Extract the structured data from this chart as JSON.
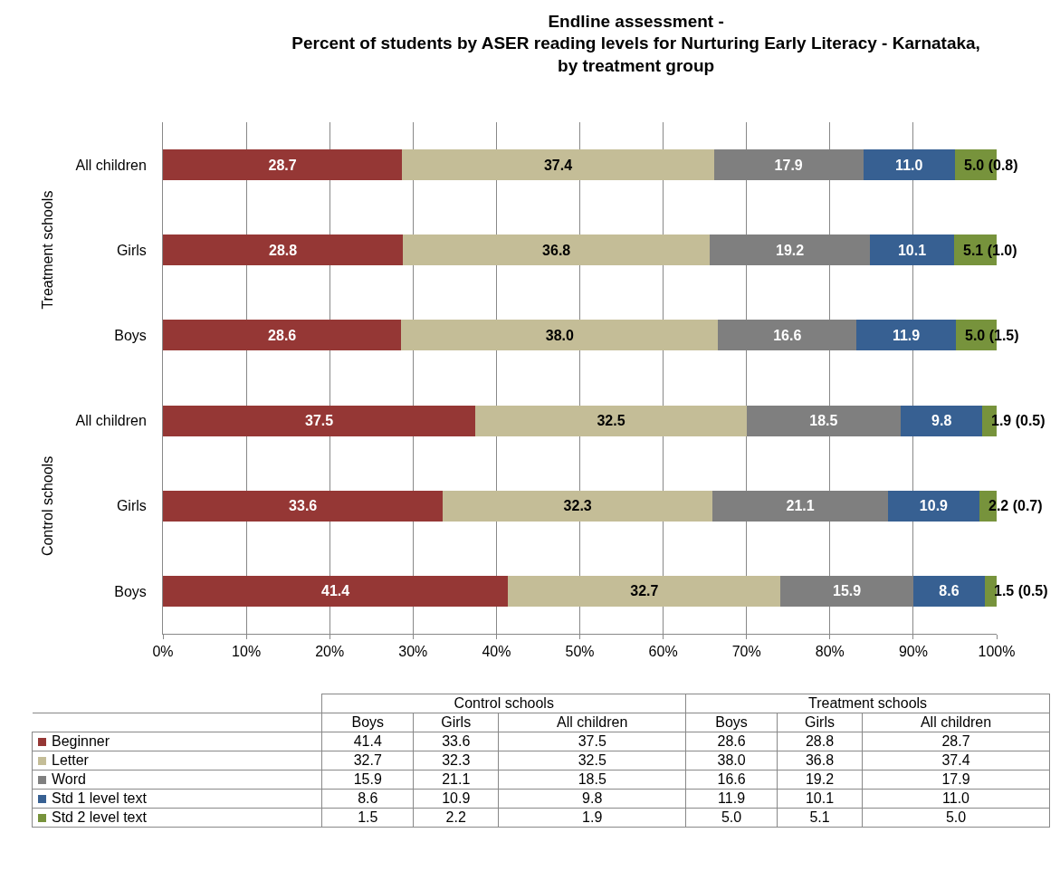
{
  "chart_data": [
    {
      "type": "bar",
      "orientation": "horizontal",
      "stacked": true,
      "title": "Endline assessment -\nPercent of students by ASER reading levels for Nurturing Early Literacy - Karnataka,\nby treatment group",
      "categories": [
        "All children",
        "Girls",
        "Boys",
        "All children",
        "Girls",
        "Boys"
      ],
      "annotations": [
        "Treatment schools",
        "Control schools"
      ],
      "series": [
        {
          "color": "#953735",
          "values": [
            28.7,
            28.8,
            28.6,
            37.5,
            33.6,
            41.4
          ],
          "value_labels": [
            "28.7",
            "28.8",
            "28.6",
            "37.5",
            "33.6",
            "41.4"
          ]
        },
        {
          "color": "#c4bd97",
          "values": [
            37.4,
            36.8,
            38.0,
            32.5,
            32.3,
            32.7
          ],
          "value_labels": [
            "37.4",
            "36.8",
            "38.0",
            "32.5",
            "32.3",
            "32.7"
          ]
        },
        {
          "color": "#7f7f7f",
          "values": [
            17.9,
            19.2,
            16.6,
            18.5,
            21.1,
            15.9
          ],
          "value_labels": [
            "17.9",
            "19.2",
            "16.6",
            "18.5",
            "21.1",
            "15.9"
          ]
        },
        {
          "color": "#376092",
          "values": [
            11.0,
            10.1,
            11.9,
            9.8,
            10.9,
            8.6
          ],
          "value_labels": [
            "11.0",
            "10.1",
            "11.9",
            "9.8",
            "10.9",
            "8.6"
          ]
        },
        {
          "color": "#77933c",
          "values": [
            5.0,
            5.1,
            5.0,
            1.9,
            2.2,
            1.5
          ],
          "value_labels": [
            "5.0 (0.8)",
            "5.1 (1.0)",
            "5.0 (1.5)",
            "1.9 (0.5)",
            "2.2 (0.7)",
            "1.5 (0.5)"
          ]
        }
      ],
      "xlim": [
        0,
        100
      ],
      "xticks": [
        {
          "value": 0,
          "label": "0%"
        },
        {
          "value": 10,
          "label": "10%"
        },
        {
          "value": 20,
          "label": "20%"
        },
        {
          "value": 30,
          "label": "30%"
        },
        {
          "value": 40,
          "label": "40%"
        },
        {
          "value": 50,
          "label": "50%"
        },
        {
          "value": 60,
          "label": "60%"
        },
        {
          "value": 70,
          "label": "70%"
        },
        {
          "value": 80,
          "label": "80%"
        },
        {
          "value": 90,
          "label": "90%"
        },
        {
          "value": 100,
          "label": "100%"
        }
      ],
      "grid": "x"
    },
    {
      "type": "other",
      "categories": [
        "Boys",
        "Girls",
        "All children",
        "Boys",
        "Girls",
        "All children"
      ],
      "annotations": [
        "Control schools",
        "Treatment schools"
      ],
      "series": [
        {
          "name": "Beginner",
          "color": "#953735",
          "values": [
            41.4,
            33.6,
            37.5,
            28.6,
            28.8,
            28.7
          ]
        },
        {
          "name": "Letter",
          "color": "#c4bd97",
          "values": [
            32.7,
            32.3,
            32.5,
            38.0,
            36.8,
            37.4
          ],
          "value_labels": [
            "32.7",
            "32.3",
            "32.5",
            "38.0",
            "36.8",
            "37.4"
          ]
        },
        {
          "name": "Word",
          "color": "#7f7f7f",
          "values": [
            15.9,
            21.1,
            18.5,
            16.6,
            19.2,
            17.9
          ]
        },
        {
          "name": "Std 1 level text",
          "color": "#376092",
          "values": [
            8.6,
            10.9,
            9.8,
            11.9,
            10.1,
            11.0
          ],
          "value_labels": [
            "8.6",
            "10.9",
            "9.8",
            "11.9",
            "10.1",
            "11.0"
          ]
        },
        {
          "name": "Std 2 level text",
          "color": "#77933c",
          "values": [
            1.5,
            2.2,
            1.9,
            5.0,
            5.1,
            5.0
          ],
          "value_labels": [
            "1.5",
            "2.2",
            "1.9",
            "5.0",
            "5.1",
            "5.0"
          ]
        }
      ],
      "data_labels": true
    }
  ]
}
